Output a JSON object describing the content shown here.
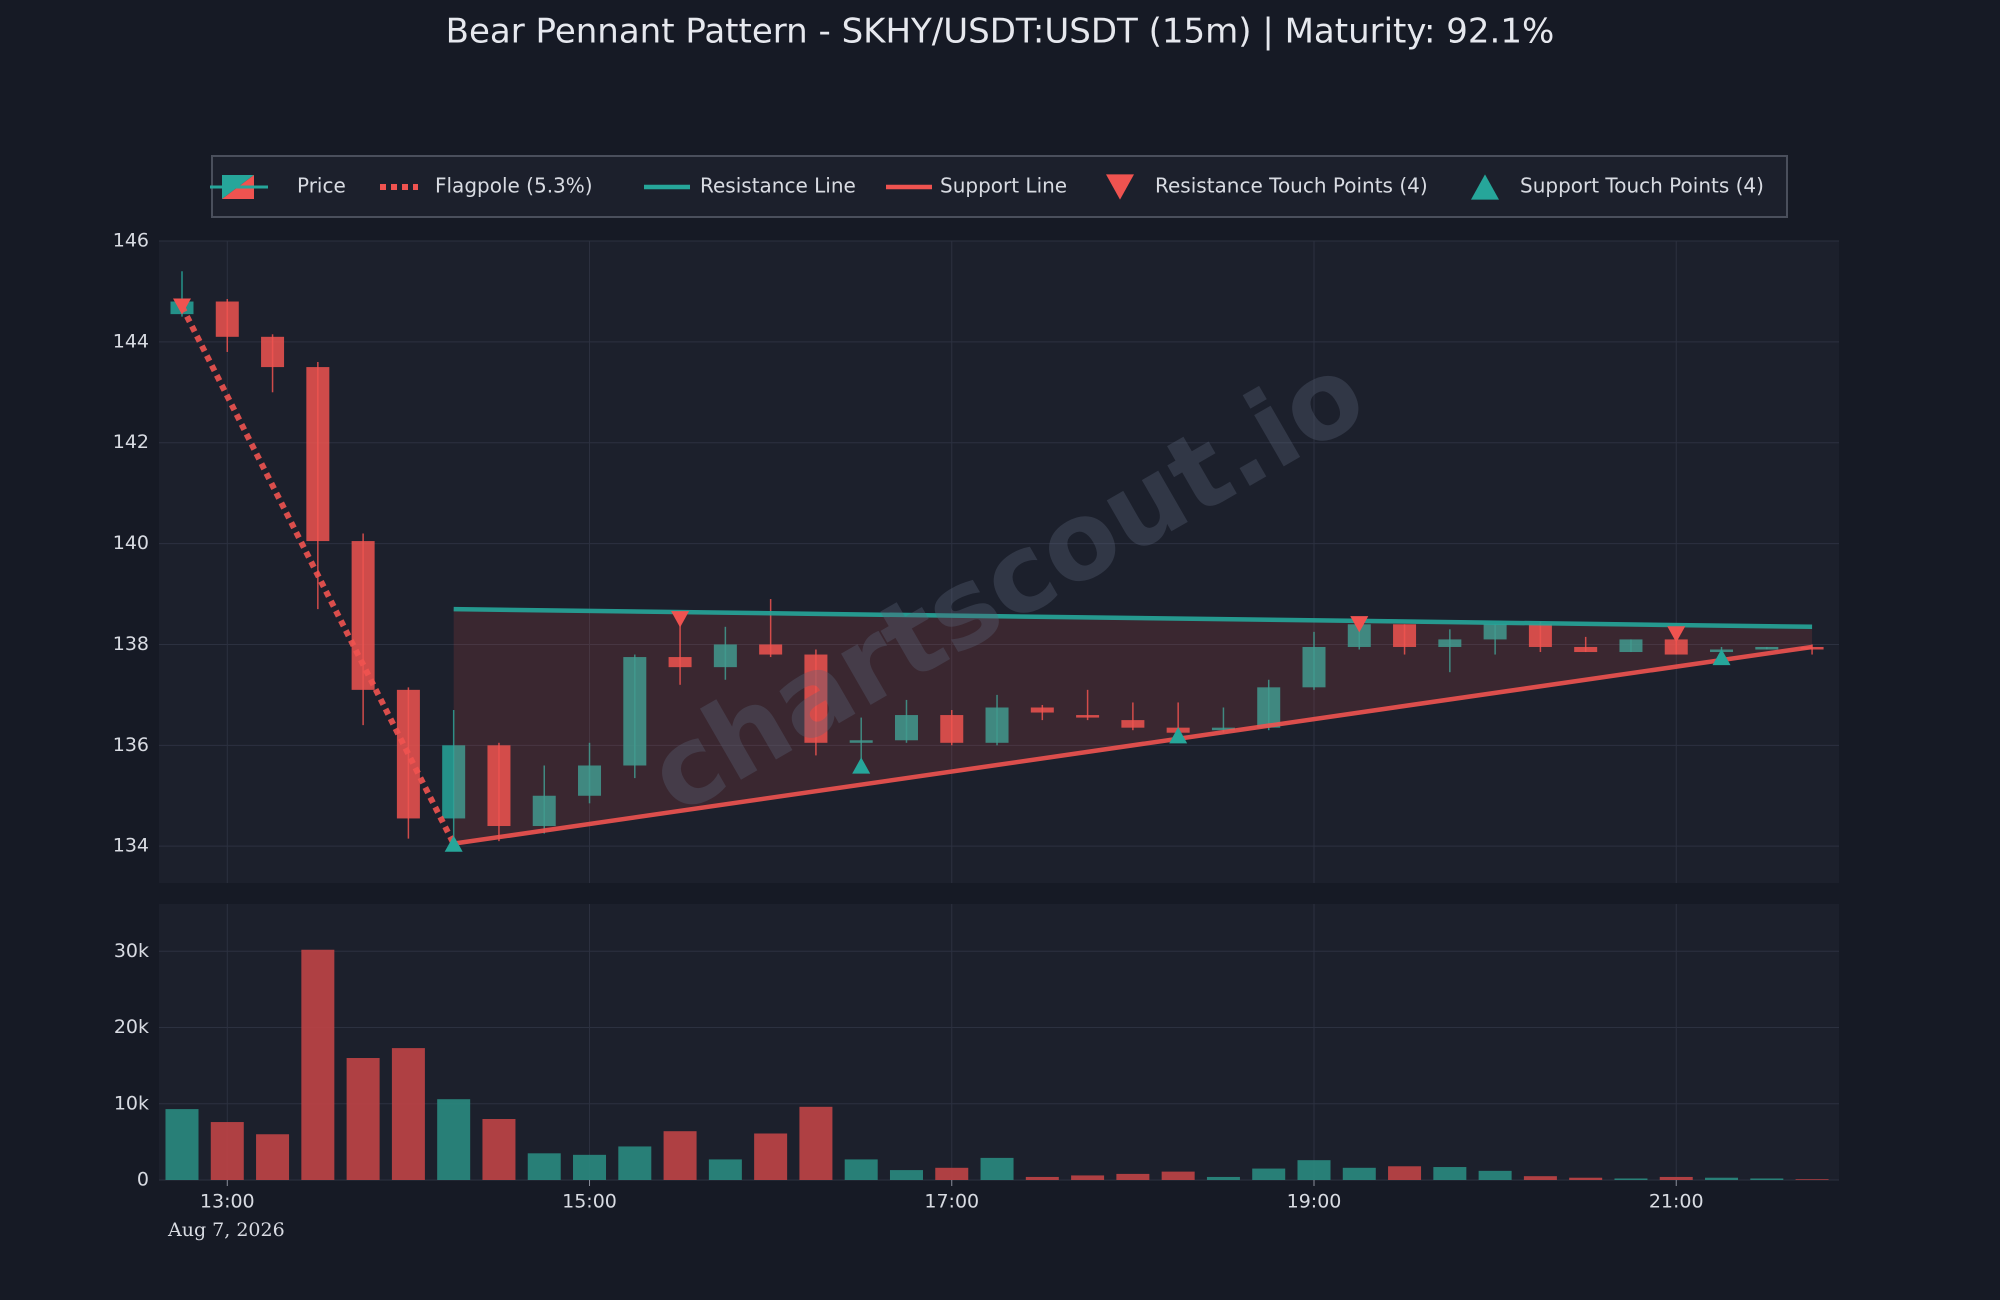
{
  "chart_data": [
    {
      "type": "candlestick",
      "title": "Bear Pennant Pattern - SKHY/USDT:USDT (15m) | Maturity: 92.1%",
      "name": "Price",
      "watermark": "chartscout.io",
      "up_color": "#26a69a",
      "down_color": "#ef5350",
      "open": [
        144.55,
        144.8,
        144.1,
        143.5,
        140.05,
        137.1,
        134.55,
        136.0,
        134.4,
        135.0,
        135.6,
        137.75,
        137.55,
        138.0,
        137.8,
        136.05,
        136.1,
        136.6,
        136.05,
        136.75,
        136.6,
        136.5,
        136.35,
        136.3,
        136.35,
        137.15,
        137.95,
        138.4,
        137.95,
        138.1,
        138.4,
        137.95,
        137.85,
        138.1,
        137.85,
        137.9,
        137.95
      ],
      "high": [
        145.4,
        144.85,
        144.15,
        143.6,
        140.2,
        137.15,
        136.7,
        136.05,
        135.6,
        136.05,
        137.8,
        138.6,
        138.35,
        138.9,
        137.9,
        136.55,
        136.9,
        136.7,
        137.0,
        136.8,
        137.1,
        136.85,
        136.85,
        136.75,
        137.3,
        138.25,
        138.45,
        138.4,
        138.3,
        138.4,
        138.45,
        138.15,
        138.1,
        138.2,
        137.95,
        137.95,
        138.0
      ],
      "low": [
        144.5,
        143.8,
        143.0,
        138.7,
        136.4,
        134.15,
        134.05,
        134.1,
        134.25,
        134.85,
        135.35,
        137.2,
        137.3,
        137.75,
        135.8,
        135.6,
        136.05,
        136.0,
        136.0,
        136.5,
        136.5,
        136.3,
        136.2,
        136.25,
        136.3,
        137.1,
        137.9,
        137.8,
        137.45,
        137.8,
        137.85,
        137.85,
        137.85,
        137.8,
        137.75,
        137.9,
        137.8
      ],
      "close": [
        144.8,
        144.1,
        143.5,
        140.05,
        137.1,
        134.55,
        136.0,
        134.4,
        135.0,
        135.6,
        137.75,
        137.55,
        138.0,
        137.8,
        136.05,
        136.1,
        136.6,
        136.05,
        136.75,
        136.65,
        136.55,
        136.35,
        136.25,
        136.35,
        137.15,
        137.95,
        138.4,
        137.95,
        138.1,
        138.4,
        137.95,
        137.85,
        138.1,
        137.8,
        137.9,
        137.95,
        137.9
      ],
      "ylim": [
        133.27,
        146
      ],
      "yticks": [
        134,
        136,
        138,
        140,
        142,
        144,
        146
      ],
      "grid": true,
      "lines": [
        {
          "name": "Flagpole (5.3%)",
          "color": "#ef5350",
          "style": "dotted",
          "x": [
            0,
            6
          ],
          "values": [
            144.7,
            134.05
          ]
        },
        {
          "name": "Resistance Line",
          "color": "#26a69a",
          "style": "solid",
          "x": [
            6,
            36
          ],
          "values": [
            138.7,
            138.35
          ]
        },
        {
          "name": "Support Line",
          "color": "#ef5350",
          "style": "solid",
          "x": [
            6,
            36
          ],
          "values": [
            134.05,
            137.95
          ]
        }
      ],
      "fill_color": "#ef5350",
      "markers": [
        {
          "name": "Resistance Touch Points (4)",
          "color": "#ef5350",
          "shape": "triangle-down",
          "x": [
            0,
            11,
            26,
            33
          ],
          "values": [
            144.7,
            138.5,
            138.4,
            138.2
          ]
        },
        {
          "name": "Support Touch Points (4)",
          "color": "#26a69a",
          "shape": "triangle-up",
          "x": [
            6,
            15,
            22,
            34
          ],
          "values": [
            134.05,
            135.6,
            136.2,
            137.75
          ]
        }
      ]
    },
    {
      "type": "bar",
      "up_color": "#2a8a80",
      "down_color": "#c04446",
      "categories": [
        null,
        "13:00",
        null,
        null,
        null,
        null,
        null,
        null,
        null,
        "15:00",
        null,
        null,
        null,
        null,
        null,
        null,
        null,
        "17:00",
        null,
        null,
        null,
        null,
        null,
        null,
        null,
        "19:00",
        null,
        null,
        null,
        null,
        null,
        null,
        null,
        "21:00",
        null,
        null,
        null
      ],
      "x_sublabel": "Aug 7, 2026",
      "values": [
        9300,
        7600,
        6000,
        30200,
        16000,
        17300,
        10600,
        8000,
        3500,
        3300,
        4400,
        6400,
        2700,
        6100,
        9600,
        2700,
        1300,
        1600,
        2900,
        400,
        600,
        800,
        1100,
        400,
        1500,
        2600,
        1600,
        1800,
        1700,
        1200,
        500,
        300,
        200,
        400,
        300,
        200,
        100
      ],
      "ylim": [
        0,
        36200
      ],
      "yticks": [
        0,
        {
          "value": 10000,
          "label": "10k"
        },
        {
          "value": 20000,
          "label": "20k"
        },
        {
          "value": 30000,
          "label": "30k"
        }
      ],
      "grid": true
    }
  ]
}
